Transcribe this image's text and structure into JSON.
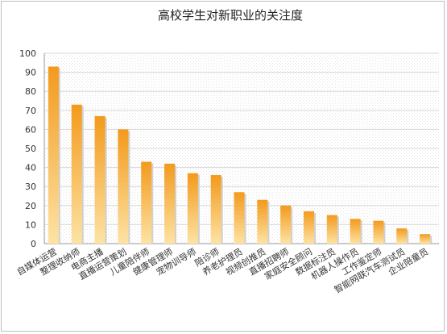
{
  "chart_data": {
    "type": "bar",
    "title": "高校学生对新职业的关注度",
    "xlabel": "",
    "ylabel": "",
    "ylim": [
      0,
      100
    ],
    "yticks": [
      0,
      10,
      20,
      30,
      40,
      50,
      60,
      70,
      80,
      90,
      100
    ],
    "grid": true,
    "legend": "none",
    "categories": [
      "自媒体运营",
      "整理收纳师",
      "电商主播",
      "直播运营策划",
      "儿童陪伴师",
      "健康管理师",
      "宠物训导师",
      "陪诊师",
      "养老护理员",
      "视频创推员",
      "直播招聘师",
      "家庭安全顾问",
      "数据标注员",
      "机器人操作员",
      "工作鉴定师",
      "智能网联汽车测试员",
      "企业陪童员"
    ],
    "values": [
      93,
      73,
      67,
      60,
      43,
      42,
      37,
      36,
      27,
      23,
      20,
      17,
      15,
      13,
      12,
      8,
      5
    ],
    "colors": {
      "bar_top": "#f39a1c",
      "bar_bottom": "#fde3a4",
      "grid": "#d8d8d8",
      "plot_bg": "#f7f7f7"
    }
  }
}
